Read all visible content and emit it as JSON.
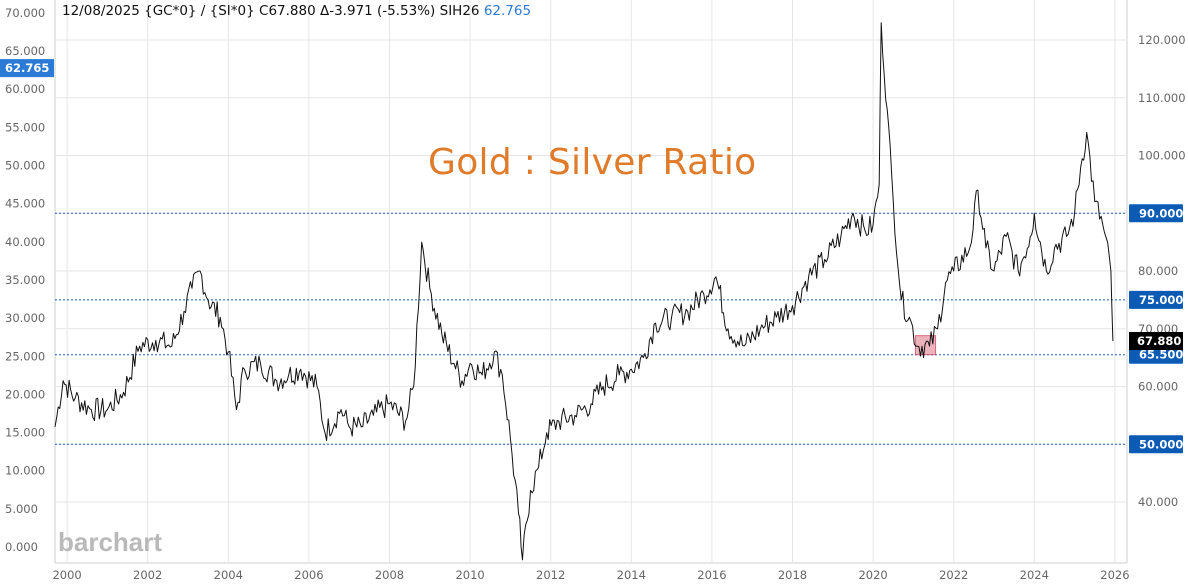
{
  "header": {
    "date": "12/08/2025",
    "symbols": "{GC*0} / {SI*0}",
    "close": "C67.880",
    "change": "Δ-3.971 (-5.53%)",
    "second_symbol": "SIH26",
    "second_value": "62.765"
  },
  "title": "Gold : Silver Ratio",
  "logo_text": "barchart",
  "colors": {
    "accent_blue": "#0b5bb5",
    "label_blue": "#2a7ad6",
    "title_orange": "#e07b2a",
    "line": "#111111",
    "grid": "#e6e6e6",
    "highlight_box": "#e8a1ad"
  },
  "chart_data": {
    "type": "line",
    "title": "Gold : Silver Ratio",
    "x_ticks": [
      "2000",
      "2002",
      "2004",
      "2006",
      "2008",
      "2010",
      "2012",
      "2014",
      "2016",
      "2018",
      "2020",
      "2022",
      "2024",
      "2026"
    ],
    "left_axis": {
      "ticks": [
        "0.000",
        "5.000",
        "10.000",
        "15.000",
        "20.000",
        "25.000",
        "30.000",
        "35.000",
        "40.000",
        "45.000",
        "50.000",
        "55.000",
        "60.000",
        "65.000",
        "70.000"
      ],
      "current_label": "62.765"
    },
    "right_axis": {
      "ticks": [
        "40.000",
        "50.000",
        "60.000",
        "70.000",
        "80.000",
        "90.000",
        "100.000",
        "110.000",
        "120.000"
      ],
      "ylim": [
        30,
        123
      ],
      "current_label": "67.880"
    },
    "horizontal_levels": [
      {
        "value": 90,
        "label": "90.000"
      },
      {
        "value": 75,
        "label": "75.000"
      },
      {
        "value": 65.5,
        "label": "65.500"
      },
      {
        "value": 50,
        "label": "50.000"
      }
    ],
    "highlight_box": {
      "x_start": 2021.05,
      "x_end": 2021.55,
      "y_low": 65.5,
      "y_high": 68.8
    },
    "series": [
      {
        "values": [
          [
            1999.7,
            53
          ],
          [
            1999.9,
            61
          ],
          [
            2000.2,
            58
          ],
          [
            2000.6,
            56
          ],
          [
            2001.0,
            56
          ],
          [
            2001.4,
            59
          ],
          [
            2001.8,
            67
          ],
          [
            2002.2,
            68
          ],
          [
            2002.6,
            67
          ],
          [
            2002.9,
            73
          ],
          [
            2003.1,
            77
          ],
          [
            2003.3,
            80
          ],
          [
            2003.5,
            75
          ],
          [
            2003.8,
            72
          ],
          [
            2004.0,
            66
          ],
          [
            2004.2,
            56
          ],
          [
            2004.4,
            63
          ],
          [
            2004.8,
            64
          ],
          [
            2005.2,
            61
          ],
          [
            2005.5,
            62
          ],
          [
            2005.8,
            63
          ],
          [
            2006.2,
            60
          ],
          [
            2006.4,
            52
          ],
          [
            2006.8,
            56
          ],
          [
            2007.0,
            53
          ],
          [
            2007.3,
            53
          ],
          [
            2007.6,
            55
          ],
          [
            2008.0,
            57
          ],
          [
            2008.4,
            54
          ],
          [
            2008.6,
            60
          ],
          [
            2008.8,
            85
          ],
          [
            2009.0,
            77
          ],
          [
            2009.3,
            69
          ],
          [
            2009.6,
            64
          ],
          [
            2009.8,
            61
          ],
          [
            2010.0,
            64
          ],
          [
            2010.3,
            62
          ],
          [
            2010.6,
            66
          ],
          [
            2010.8,
            62
          ],
          [
            2011.0,
            51
          ],
          [
            2011.2,
            38
          ],
          [
            2011.3,
            30
          ],
          [
            2011.5,
            42
          ],
          [
            2011.7,
            46
          ],
          [
            2011.9,
            52
          ],
          [
            2012.2,
            54
          ],
          [
            2012.6,
            55
          ],
          [
            2013.0,
            57
          ],
          [
            2013.3,
            60
          ],
          [
            2013.7,
            62
          ],
          [
            2014.0,
            63
          ],
          [
            2014.3,
            65
          ],
          [
            2014.6,
            71
          ],
          [
            2015.0,
            72
          ],
          [
            2015.4,
            73
          ],
          [
            2015.8,
            76
          ],
          [
            2016.1,
            79
          ],
          [
            2016.4,
            70
          ],
          [
            2016.8,
            67
          ],
          [
            2017.2,
            70
          ],
          [
            2017.6,
            72
          ],
          [
            2018.0,
            74
          ],
          [
            2018.4,
            79
          ],
          [
            2018.8,
            82
          ],
          [
            2019.2,
            86
          ],
          [
            2019.5,
            90
          ],
          [
            2019.8,
            87
          ],
          [
            2020.0,
            88
          ],
          [
            2020.15,
            95
          ],
          [
            2020.2,
            123
          ],
          [
            2020.35,
            108
          ],
          [
            2020.5,
            92
          ],
          [
            2020.7,
            75
          ],
          [
            2020.9,
            72
          ],
          [
            2021.1,
            67
          ],
          [
            2021.4,
            67
          ],
          [
            2021.6,
            70
          ],
          [
            2021.8,
            78
          ],
          [
            2022.0,
            80
          ],
          [
            2022.4,
            84
          ],
          [
            2022.6,
            94
          ],
          [
            2022.8,
            84
          ],
          [
            2023.0,
            80
          ],
          [
            2023.3,
            86
          ],
          [
            2023.6,
            80
          ],
          [
            2023.9,
            86
          ],
          [
            2024.0,
            90
          ],
          [
            2024.3,
            80
          ],
          [
            2024.5,
            84
          ],
          [
            2024.8,
            86
          ],
          [
            2025.0,
            90
          ],
          [
            2025.15,
            98
          ],
          [
            2025.3,
            104
          ],
          [
            2025.5,
            92
          ],
          [
            2025.7,
            88
          ],
          [
            2025.9,
            80
          ],
          [
            2025.95,
            67.88
          ]
        ]
      }
    ]
  }
}
